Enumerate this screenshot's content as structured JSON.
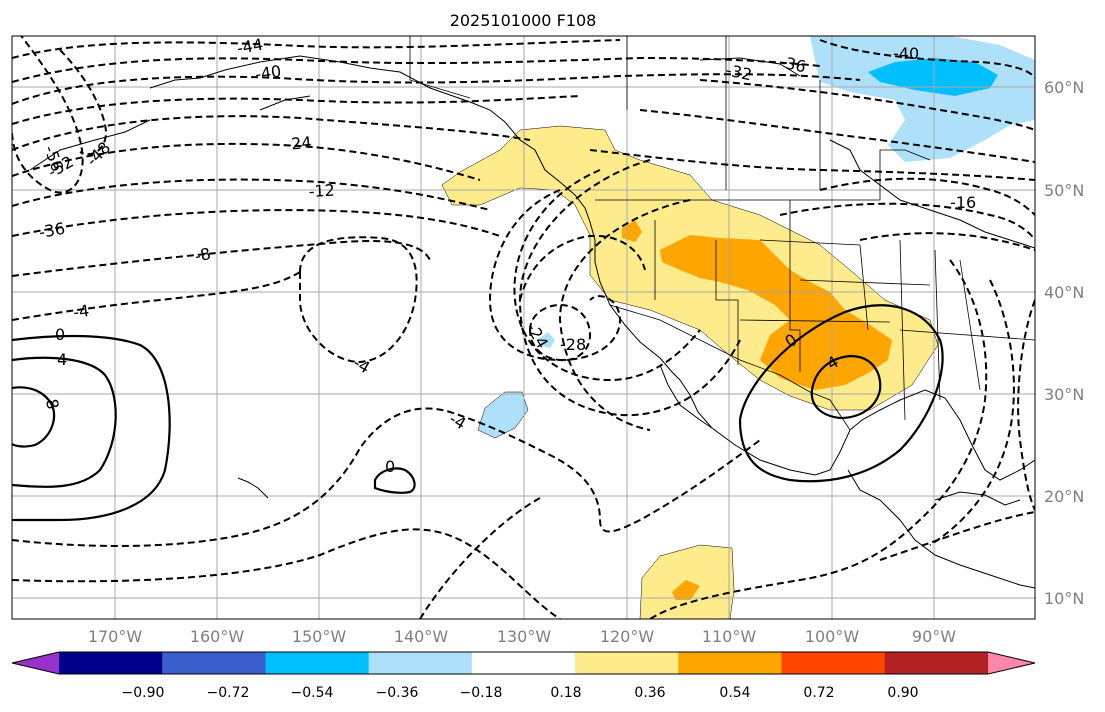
{
  "title": "2025101000 F108",
  "lon_ticks": [
    "170°W",
    "160°W",
    "150°W",
    "140°W",
    "130°W",
    "120°W",
    "110°W",
    "100°W",
    "90°W"
  ],
  "lat_ticks": [
    "60°N",
    "50°N",
    "40°N",
    "30°N",
    "20°N",
    "10°N"
  ],
  "colorbar": {
    "labels": [
      "−0.90",
      "−0.72",
      "−0.54",
      "−0.36",
      "−0.18",
      "0.18",
      "0.36",
      "0.54",
      "0.72",
      "0.90"
    ],
    "colors": [
      "#9932cc",
      "#00008b",
      "#3a5fcd",
      "#00bfff",
      "#aee0fa",
      "#ffffff",
      "#feeb8c",
      "#ffa500",
      "#ff4500",
      "#b22222",
      "#ff88aa"
    ]
  },
  "contour_labels": [
    "-56",
    "-52",
    "-48",
    "-44",
    "-40",
    "-40",
    "-36",
    "-36",
    "-32",
    "-24",
    "-12",
    "-8",
    "-4",
    "-4",
    "-4",
    "-24",
    "-28",
    "-16",
    "0",
    "0",
    "0",
    "4",
    "4",
    "8"
  ],
  "shading_colors": {
    "light_blue": "#aee0fa",
    "blue": "#00bfff",
    "yellow": "#feeb8c",
    "orange": "#ffa500"
  }
}
